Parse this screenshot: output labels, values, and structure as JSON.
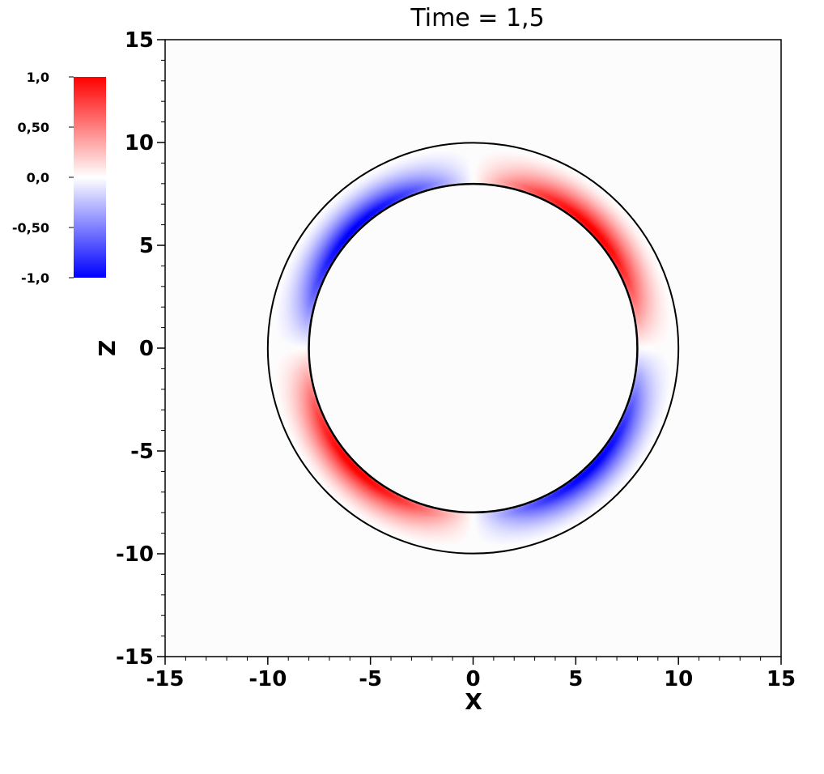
{
  "chart_data": {
    "type": "heatmap",
    "title": "Time = 1,5",
    "xlabel": "X",
    "ylabel": "Z",
    "xlim": [
      -15,
      15
    ],
    "ylim": [
      -15,
      15
    ],
    "x_ticks": [
      "-15",
      "-10",
      "-5",
      "0",
      "5",
      "10",
      "15"
    ],
    "y_ticks": [
      "15",
      "10",
      "5",
      "0",
      "-5",
      "-10",
      "-15"
    ],
    "x_tick_values": [
      -15,
      -10,
      -5,
      0,
      5,
      10,
      15
    ],
    "y_tick_values": [
      15,
      10,
      5,
      0,
      -5,
      -10,
      -15
    ],
    "colorbar": {
      "range": [
        -1.0,
        1.0
      ],
      "tick_labels": [
        "1,0",
        "0,50",
        "0,0",
        "-0,50",
        "-1,0"
      ],
      "tick_values": [
        1.0,
        0.5,
        0.0,
        -0.5,
        -1.0
      ],
      "colors": {
        "max": "#ff0000",
        "mid": "#ffffff",
        "min": "#0000ff"
      }
    },
    "field": {
      "description_pattern": "quadrupole",
      "inner_radius": 8,
      "outer_radius": 10,
      "positive_quadrants": [
        "upper-right",
        "lower-left"
      ],
      "negative_quadrants": [
        "upper-left",
        "lower-right"
      ],
      "peak_value": 1.0
    },
    "grid": false,
    "background_color": "#fdfcfd",
    "contour_color": "#000000"
  }
}
